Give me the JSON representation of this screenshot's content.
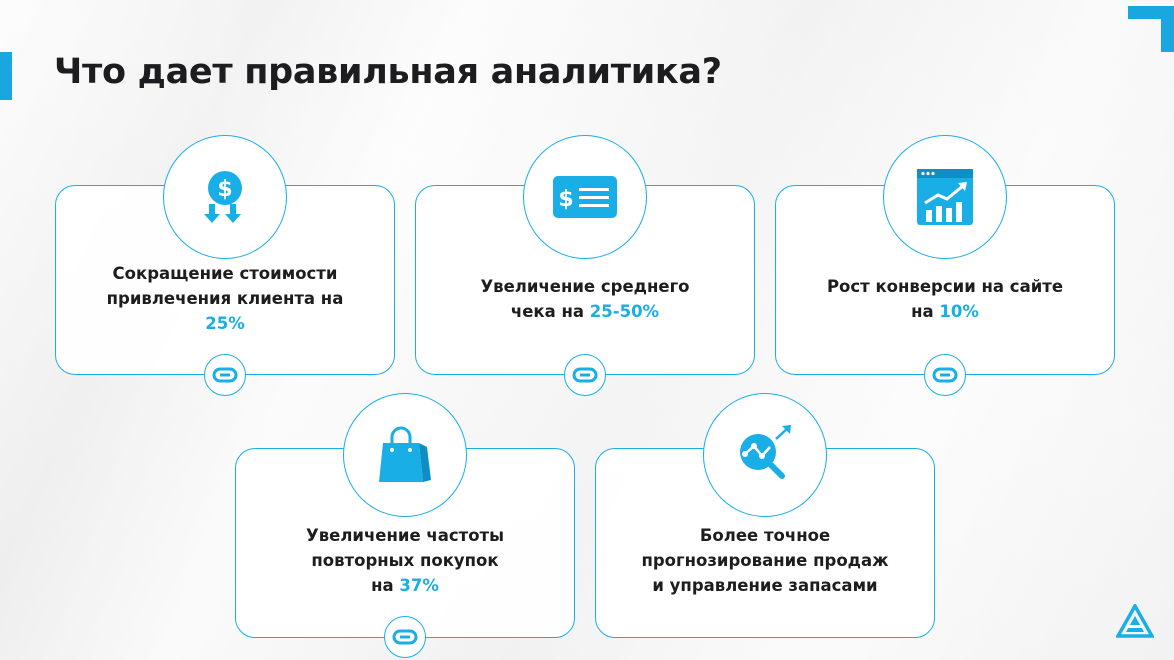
{
  "slide": {
    "title": "Что дает правильная аналитика?",
    "accent_color": "#19aee6"
  },
  "cards": [
    {
      "icon": "dollar-down-icon",
      "lines": [
        {
          "text": "Сокращение стоимости"
        },
        {
          "text": "привлечения клиента на"
        },
        {
          "text": "",
          "accent": "25%"
        }
      ],
      "has_link": true
    },
    {
      "icon": "check-bill-icon",
      "lines": [
        {
          "text": "Увеличение среднего"
        },
        {
          "text": "чека на ",
          "accent": "25-50%"
        }
      ],
      "has_link": true
    },
    {
      "icon": "growth-chart-icon",
      "lines": [
        {
          "text": "Рост конверсии на сайте"
        },
        {
          "text": "на ",
          "accent": "10%"
        }
      ],
      "has_link": true
    },
    {
      "icon": "shopping-bag-icon",
      "lines": [
        {
          "text": "Увеличение частоты"
        },
        {
          "text": "повторных покупок"
        },
        {
          "text": "на ",
          "accent": "37%"
        }
      ],
      "has_link": true
    },
    {
      "icon": "forecast-search-icon",
      "lines": [
        {
          "text": "Более точное"
        },
        {
          "text": "прогнозирование продаж"
        },
        {
          "text": "и управление запасами"
        }
      ],
      "has_link": false
    }
  ],
  "icons": {
    "link": "link-icon",
    "logo": "triangle-logo-icon"
  }
}
